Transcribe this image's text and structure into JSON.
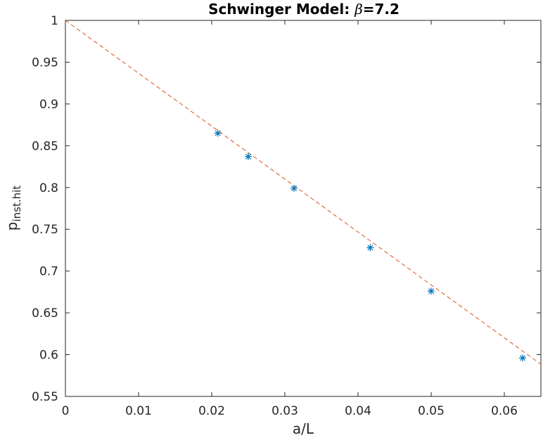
{
  "chart_data": {
    "type": "scatter",
    "title_prefix": "Schwinger Model: ",
    "title_symbol": "β",
    "title_suffix": "=7.2",
    "xlabel": "a/L",
    "ylabel_main": "p",
    "ylabel_sub": "inst.hit",
    "xlim": [
      0,
      0.065
    ],
    "ylim": [
      0.55,
      1.0
    ],
    "xticks": [
      "0",
      "0.01",
      "0.02",
      "0.03",
      "0.04",
      "0.05",
      "0.06"
    ],
    "yticks": [
      "0.55",
      "0.6",
      "0.65",
      "0.7",
      "0.75",
      "0.8",
      "0.85",
      "0.9",
      "0.95",
      "1"
    ],
    "grid": false,
    "series": [
      {
        "marker": "asterisk",
        "color": "#0072BD",
        "x": [
          0.02083,
          0.025,
          0.03125,
          0.04167,
          0.05,
          0.0625
        ],
        "y": [
          0.865,
          0.837,
          0.799,
          0.728,
          0.676,
          0.596
        ]
      }
    ],
    "fit_line": {
      "style": "dashed",
      "color": "#D95319",
      "x": [
        0,
        0.065
      ],
      "y": [
        1.0,
        0.5885
      ]
    }
  }
}
